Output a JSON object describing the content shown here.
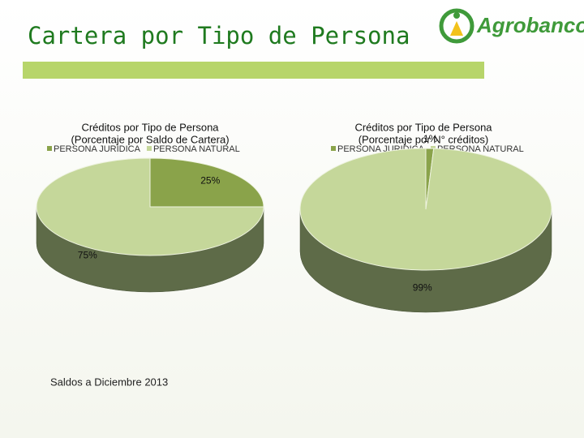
{
  "title": "Cartera por Tipo de Persona",
  "logo": "Agrobanco",
  "note": "Saldos a Diciembre 2013",
  "chart_data": [
    {
      "type": "pie",
      "title": "Créditos por Tipo de Persona",
      "subtitle": "(Porcentaje por Saldo de Cartera)",
      "categories": [
        "PERSONA JURIDICA",
        "PERSONA NATURAL"
      ],
      "values": [
        25,
        75
      ],
      "value_labels": [
        "25%",
        "75%"
      ],
      "colors": [
        "#8aa34a",
        "#c5d79a"
      ],
      "legend": "top"
    },
    {
      "type": "pie",
      "title": "Créditos por Tipo de Persona",
      "subtitle": "(Porcentaje por N° créditos)",
      "categories": [
        "PERSONA JURIDICA",
        "PERSONA NATURAL"
      ],
      "values": [
        1,
        99
      ],
      "value_labels": [
        "1%",
        "99%"
      ],
      "colors": [
        "#8aa34a",
        "#c5d79a"
      ],
      "legend": "top"
    }
  ]
}
